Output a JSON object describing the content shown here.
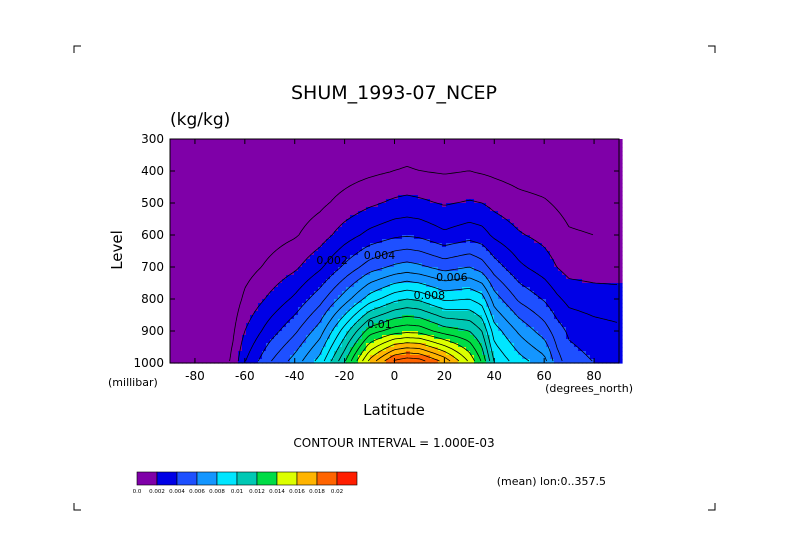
{
  "chart_data": {
    "type": "contour",
    "title": "SHUM_1993-07_NCEP",
    "units_label": "(kg/kg)",
    "xlabel": "Latitude",
    "ylabel": "Level",
    "x_units_label": "(degrees_north)",
    "y_units_label": "(millibar)",
    "xlim": [
      -90,
      90
    ],
    "ylim": [
      1000,
      300
    ],
    "x_ticks": [
      -80,
      -60,
      -40,
      -20,
      0,
      20,
      40,
      60,
      80
    ],
    "y_ticks": [
      300,
      400,
      500,
      600,
      700,
      800,
      900,
      1000
    ],
    "contour_interval_text": "CONTOUR INTERVAL = 1.000E-03",
    "footnote": "(mean) lon:0..357.5",
    "contour_labels": [
      {
        "text": "0.002",
        "lat": -25,
        "lev": 690
      },
      {
        "text": "0.004",
        "lat": -6,
        "lev": 675
      },
      {
        "text": "0.006",
        "lat": 23,
        "lev": 743
      },
      {
        "text": "0.008",
        "lat": 14,
        "lev": 800
      },
      {
        "text": "0.01",
        "lat": -6,
        "lev": 890
      }
    ],
    "colorbar": {
      "levels": [
        0.0,
        0.002,
        0.004,
        0.006,
        0.008,
        0.01,
        0.012,
        0.014,
        0.016,
        0.018,
        0.02
      ],
      "labels": [
        "0.0",
        "0.002",
        "0.004",
        "0.006",
        "0.008",
        "0.01",
        "0.012",
        "0.014",
        "0.016",
        "0.018",
        "0.02"
      ],
      "colors": [
        "#7f00a8",
        "#0000e6",
        "#1e50ff",
        "#1496ff",
        "#00e6ff",
        "#00c8b4",
        "#00dc46",
        "#dcff00",
        "#ffb400",
        "#ff6400",
        "#ff1e00"
      ]
    },
    "field": {
      "lat": [
        -90,
        -80,
        -70,
        -65,
        -60,
        -50,
        -40,
        -30,
        -20,
        -10,
        0,
        5,
        10,
        20,
        30,
        35,
        40,
        50,
        60,
        65,
        70,
        80,
        90
      ],
      "lev": [
        1000,
        900,
        800,
        700,
        600,
        500,
        400,
        300
      ],
      "values": [
        [
          0.0,
          0.0,
          0.0004,
          0.0012,
          0.003,
          0.005,
          0.0065,
          0.0085,
          0.012,
          0.0165,
          0.0195,
          0.02,
          0.0198,
          0.018,
          0.015,
          0.013,
          0.01,
          0.0085,
          0.0075,
          0.0055,
          0.0045,
          0.004,
          0.0038
        ],
        [
          0.0,
          0.0,
          0.0002,
          0.0008,
          0.002,
          0.0035,
          0.0048,
          0.0065,
          0.0095,
          0.0125,
          0.0135,
          0.0137,
          0.0136,
          0.0125,
          0.012,
          0.011,
          0.0085,
          0.0068,
          0.0055,
          0.0045,
          0.0038,
          0.0034,
          0.0032
        ],
        [
          0.0,
          0.0,
          0.0001,
          0.0004,
          0.0012,
          0.0022,
          0.0032,
          0.0046,
          0.0065,
          0.0085,
          0.0097,
          0.01,
          0.0098,
          0.0088,
          0.009,
          0.0085,
          0.0065,
          0.0048,
          0.0039,
          0.0032,
          0.0027,
          0.0025,
          0.0024
        ],
        [
          0.0,
          0.0,
          0.0,
          0.0002,
          0.0006,
          0.0012,
          0.0018,
          0.0028,
          0.0042,
          0.0055,
          0.0062,
          0.0064,
          0.0062,
          0.0056,
          0.006,
          0.0055,
          0.0045,
          0.0032,
          0.0025,
          0.002,
          0.0016,
          0.0015,
          0.0015
        ],
        [
          0.0,
          0.0,
          0.0,
          0.0001,
          0.0003,
          0.0006,
          0.0009,
          0.0015,
          0.0025,
          0.0033,
          0.0038,
          0.0039,
          0.0038,
          0.0032,
          0.0036,
          0.0034,
          0.0028,
          0.0021,
          0.0017,
          0.0014,
          0.0011,
          0.001,
          0.001
        ],
        [
          0.0,
          0.0,
          0.0,
          0.0,
          0.0001,
          0.0003,
          0.0005,
          0.0008,
          0.0013,
          0.0018,
          0.0022,
          0.0023,
          0.0022,
          0.0019,
          0.0021,
          0.002,
          0.0017,
          0.0013,
          0.0011,
          0.0009,
          0.0007,
          0.0006,
          0.0006
        ],
        [
          0.0,
          0.0,
          0.0,
          0.0,
          0.0,
          0.0001,
          0.0002,
          0.0004,
          0.0006,
          0.0008,
          0.001,
          0.0011,
          0.001,
          0.0009,
          0.001,
          0.0009,
          0.0008,
          0.0006,
          0.0005,
          0.0004,
          0.0003,
          0.0003,
          0.0003
        ],
        [
          0.0,
          0.0,
          0.0,
          0.0,
          0.0,
          0.0,
          0.0001,
          0.0001,
          0.0002,
          0.0003,
          0.0004,
          0.0004,
          0.0004,
          0.0003,
          0.0003,
          0.0003,
          0.0003,
          0.0002,
          0.0002,
          0.0001,
          0.0001,
          0.0001,
          0.0001
        ]
      ]
    }
  }
}
